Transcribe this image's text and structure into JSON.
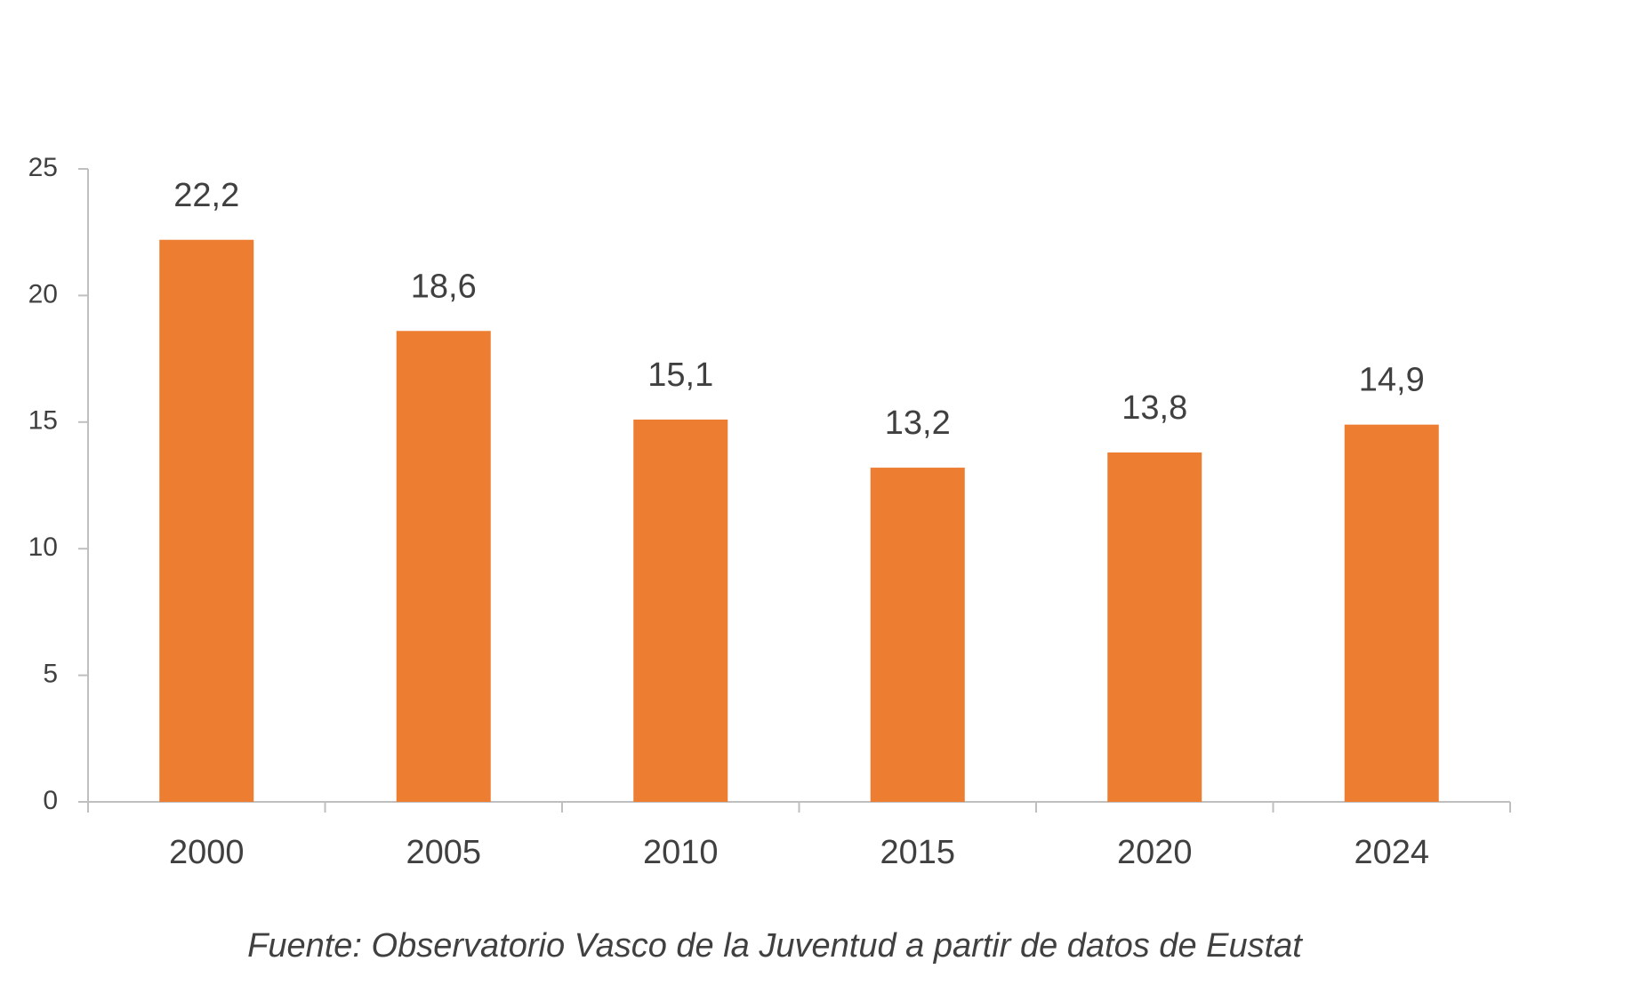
{
  "chart_data": {
    "type": "bar",
    "source": "Fuente: Observatorio Vasco de la Juventud a partir de datos de Eustat",
    "categories": [
      "2000",
      "2005",
      "2010",
      "2015",
      "2020",
      "2024"
    ],
    "values": [
      22.2,
      18.6,
      15.1,
      13.2,
      13.8,
      14.9
    ],
    "value_labels": [
      "22,2",
      "18,6",
      "15,1",
      "13,2",
      "13,8",
      "14,9"
    ],
    "color": "#ed7d31",
    "ylim": [
      0,
      25
    ],
    "yticks": [
      0,
      5,
      10,
      15,
      20,
      25
    ],
    "grid": false
  }
}
